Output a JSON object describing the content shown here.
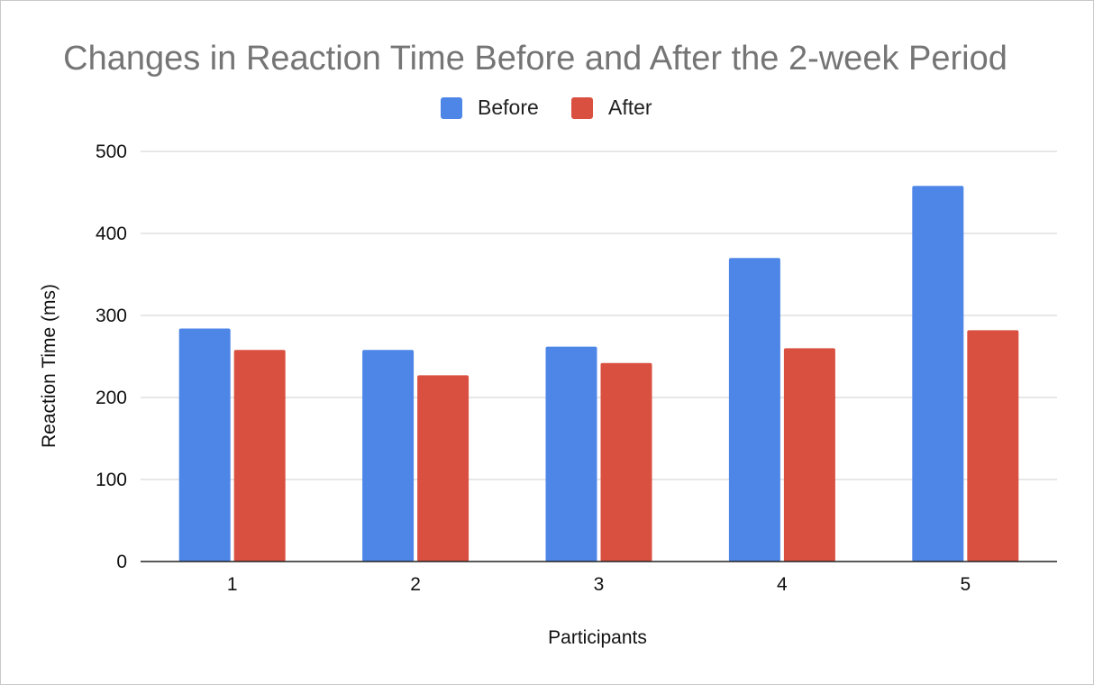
{
  "chart_data": {
    "type": "bar",
    "title": "Changes in Reaction Time Before and After the 2-week Period",
    "xlabel": "Participants",
    "ylabel": "Reaction Time (ms)",
    "categories": [
      "1",
      "2",
      "3",
      "4",
      "5"
    ],
    "series": [
      {
        "name": "Before",
        "color": "#4e86e8",
        "values": [
          284,
          258,
          262,
          370,
          458
        ]
      },
      {
        "name": "After",
        "color": "#d95040",
        "values": [
          258,
          227,
          242,
          260,
          282
        ]
      }
    ],
    "ylim": [
      0,
      500
    ],
    "yticks": [
      "0",
      "100",
      "200",
      "300",
      "400",
      "500"
    ],
    "grid": true,
    "legend_position": "top-center"
  }
}
